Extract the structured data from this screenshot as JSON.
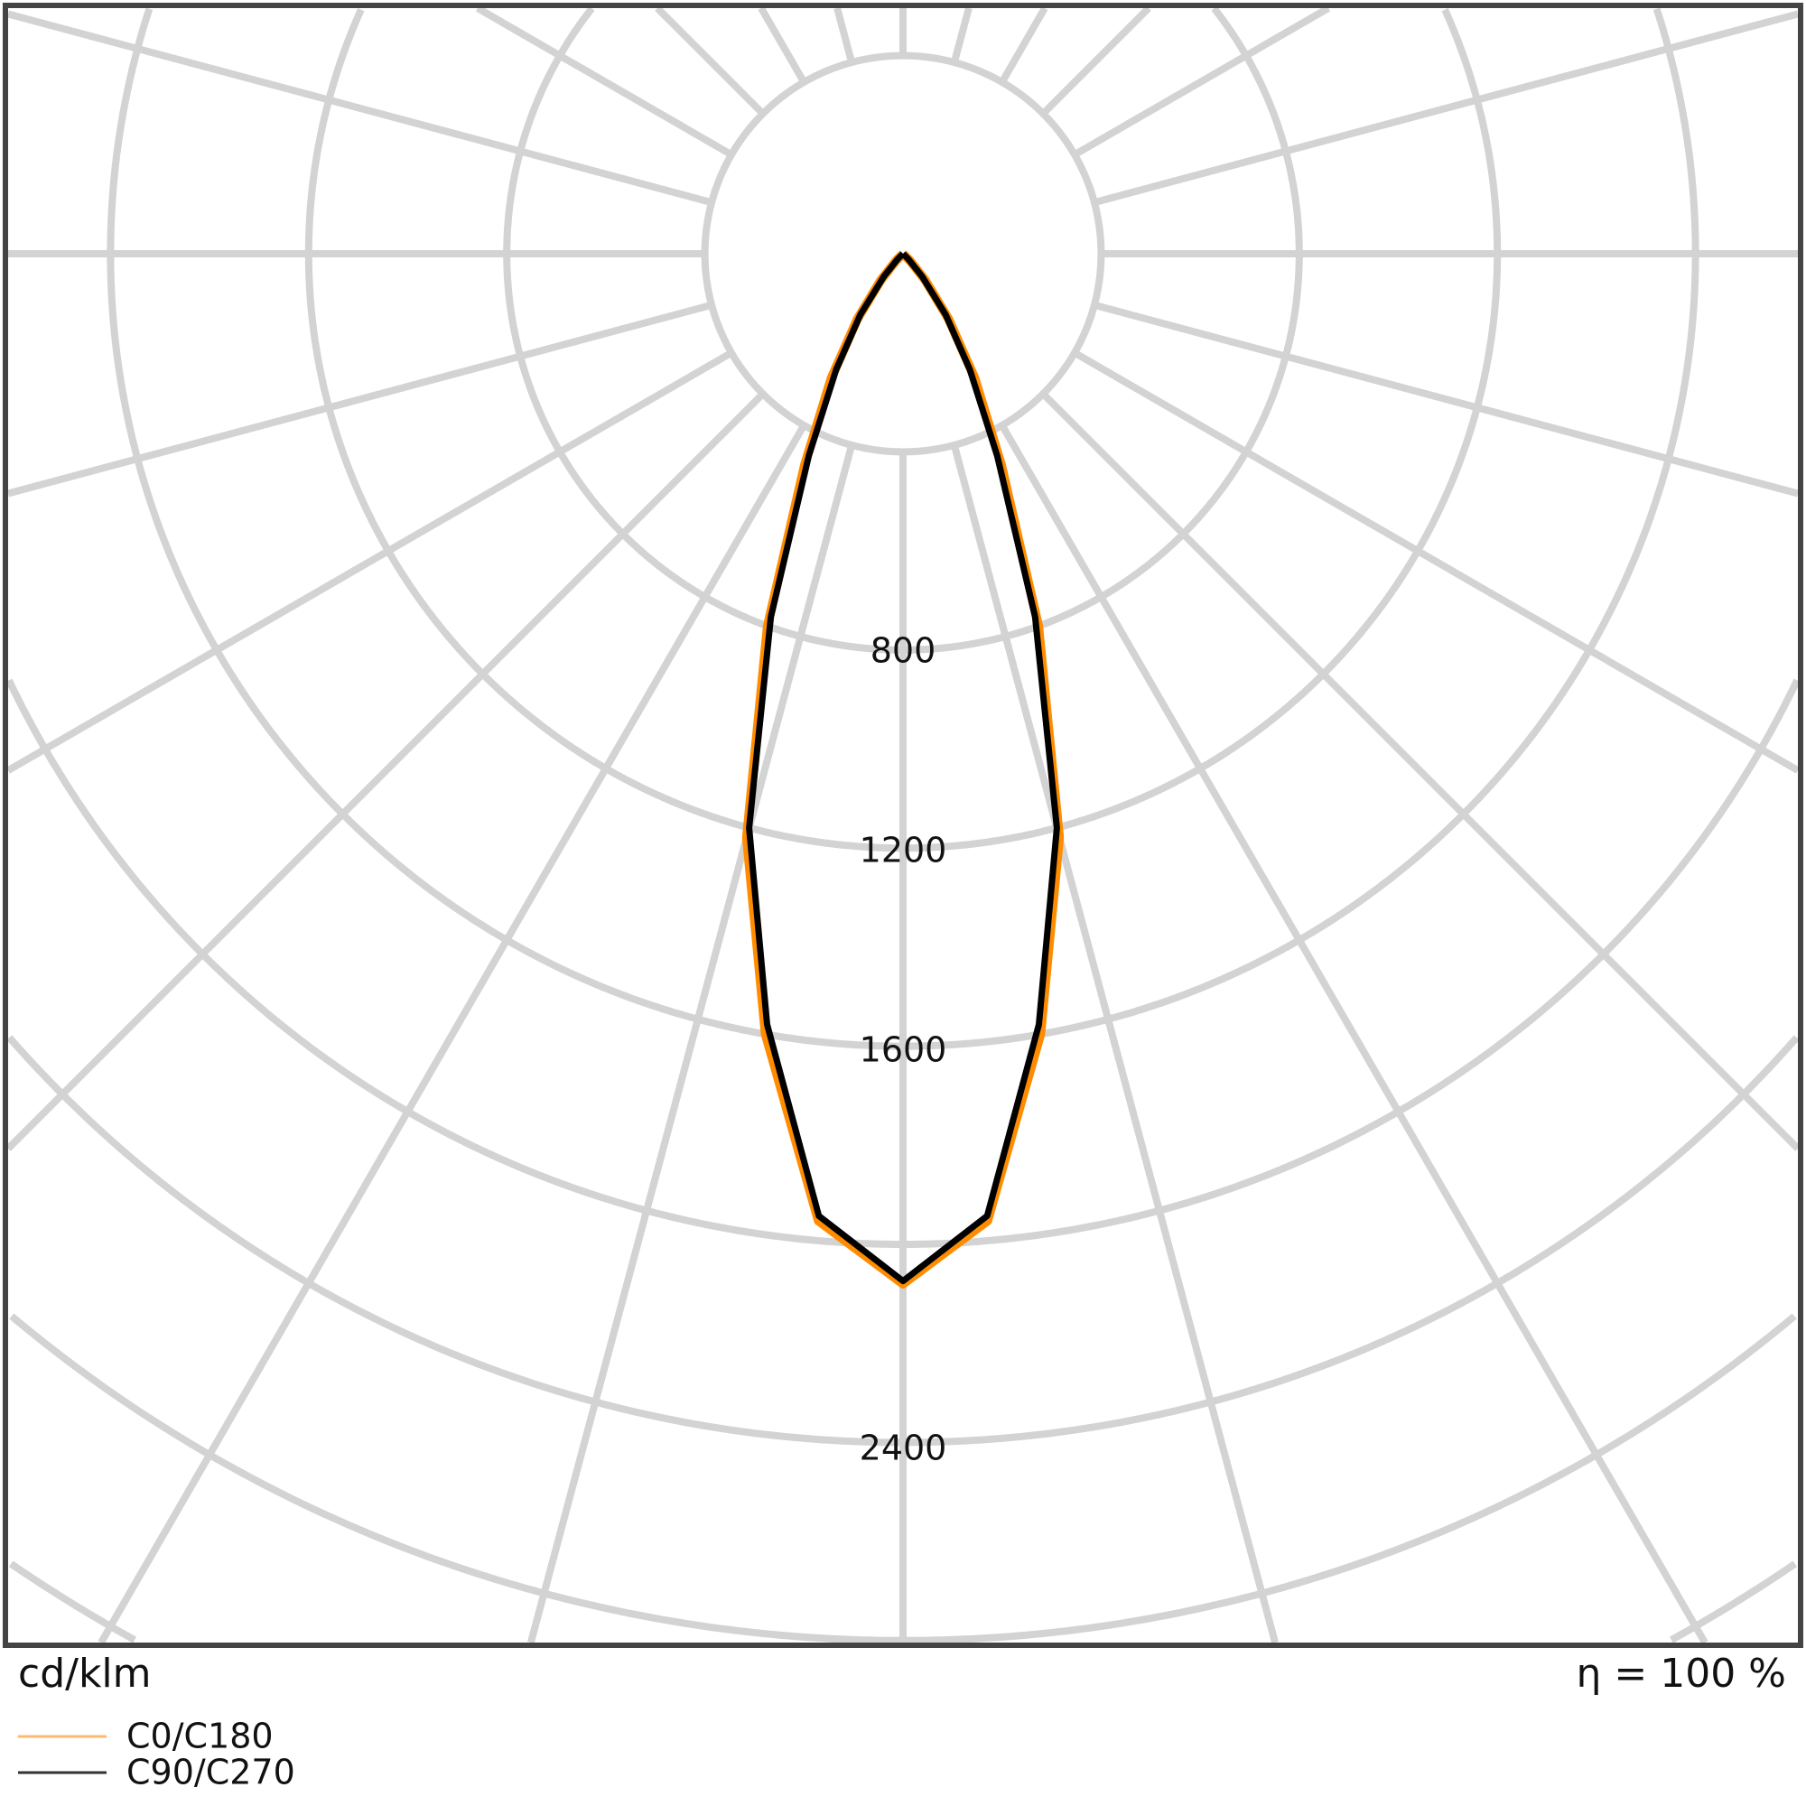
{
  "chart_data": {
    "type": "polar",
    "unit_label": "cd/klm",
    "efficiency_label": "η = 100 %",
    "radial_tick_labels": [
      "800",
      "1200",
      "1600",
      "2400"
    ],
    "radial_ticks": [
      400,
      800,
      1200,
      1600,
      2000,
      2400,
      2800,
      3200
    ],
    "angle_step_deg": 15,
    "grid": true,
    "legend_placement": "bottom-left",
    "angles_deg": [
      0,
      5,
      10,
      15,
      20,
      25,
      30,
      35,
      40,
      45,
      50
    ],
    "series": [
      {
        "name": "C0/C180",
        "color": "#ff8c00",
        "legend_color": "#ffb870",
        "values": [
          2080,
          1960,
          1600,
          1220,
          800,
          470,
          290,
          160,
          70,
          20,
          0
        ]
      },
      {
        "name": "C90/C270",
        "color": "#000000",
        "legend_color": "#333333",
        "values": [
          2074,
          1950,
          1580,
          1200,
          780,
          450,
          270,
          150,
          60,
          15,
          0
        ]
      }
    ]
  }
}
